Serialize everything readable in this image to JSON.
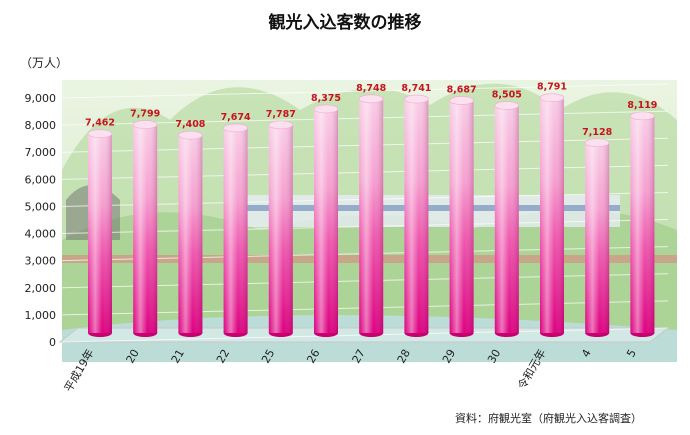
{
  "title": "観光入込客数の推移",
  "unit_label": "（万人）",
  "source_note": "資料：府観光室（府観光入込客調査）",
  "chart_data": {
    "type": "bar",
    "title": "観光入込客数の推移",
    "ylabel": "（万人）",
    "ylim": [
      0,
      9000
    ],
    "yticks": [
      "0",
      "1,000",
      "2,000",
      "3,000",
      "4,000",
      "5,000",
      "6,000",
      "7,000",
      "8,000",
      "9,000"
    ],
    "categories": [
      "平成19年",
      "20",
      "21",
      "22",
      "25",
      "26",
      "27",
      "28",
      "29",
      "30",
      "令和元年",
      "4",
      "5"
    ],
    "values": [
      7462,
      7799,
      7408,
      7674,
      7787,
      8375,
      8748,
      8741,
      8687,
      8505,
      8791,
      7128,
      8119
    ],
    "value_labels": [
      "7,462",
      "7,799",
      "7,408",
      "7,674",
      "7,787",
      "8,375",
      "8,748",
      "8,741",
      "8,687",
      "8,505",
      "8,791",
      "7,128",
      "8,119"
    ],
    "grid": true,
    "colors": {
      "bar_top": "#f8c8e4",
      "bar_mid": "#ee4aa8",
      "bar_bottom": "#e0007e",
      "label": "#c8141e"
    }
  }
}
